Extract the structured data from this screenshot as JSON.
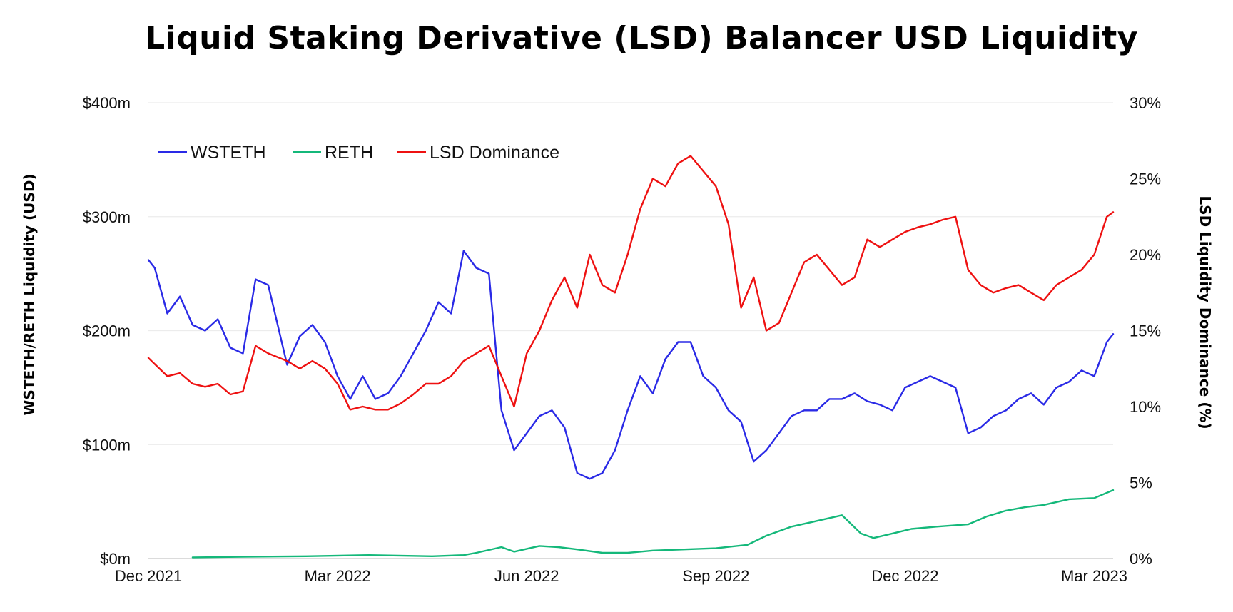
{
  "chart_data": {
    "type": "line",
    "title": "Liquid Staking Derivative (LSD) Balancer USD Liquidity",
    "ylabel": "WSTETH/RETH Liquidity (USD)",
    "y2label": "LSD Liquidity Dominance (%)",
    "xlabel": "",
    "x_ticks": [
      "Dec 2021",
      "Mar 2022",
      "Jun 2022",
      "Sep 2022",
      "Dec 2022",
      "Mar 2023"
    ],
    "x_range": [
      0,
      15.3
    ],
    "y_ticks": [
      "$0m",
      "$100m",
      "$200m",
      "$300m",
      "$400m"
    ],
    "ylim": [
      0,
      400
    ],
    "y2_ticks": [
      "0%",
      "5%",
      "10%",
      "15%",
      "20%",
      "25%",
      "30%"
    ],
    "y2lim": [
      0,
      30
    ],
    "grid": true,
    "legend_position": "top-left",
    "series": [
      {
        "name": "WSTETH",
        "color": "#2a2ae6",
        "axis": "left",
        "unit": "USD millions",
        "x": [
          0,
          0.1,
          0.3,
          0.5,
          0.7,
          0.9,
          1.1,
          1.3,
          1.5,
          1.7,
          1.9,
          2.2,
          2.4,
          2.6,
          2.8,
          3.0,
          3.2,
          3.4,
          3.6,
          3.8,
          4.0,
          4.2,
          4.4,
          4.6,
          4.8,
          5.0,
          5.2,
          5.4,
          5.6,
          5.8,
          6.0,
          6.2,
          6.4,
          6.6,
          6.8,
          7.0,
          7.2,
          7.4,
          7.6,
          7.8,
          8.0,
          8.2,
          8.4,
          8.6,
          8.8,
          9.0,
          9.2,
          9.4,
          9.6,
          9.8,
          10.0,
          10.2,
          10.4,
          10.6,
          10.8,
          11.0,
          11.2,
          11.4,
          11.6,
          11.8,
          12.0,
          12.2,
          12.4,
          12.6,
          12.8,
          13.0,
          13.2,
          13.4,
          13.6,
          13.8,
          14.0,
          14.2,
          14.4,
          14.6,
          14.8,
          15.0,
          15.2,
          15.3
        ],
        "values": [
          262,
          255,
          215,
          230,
          205,
          200,
          210,
          185,
          180,
          245,
          240,
          170,
          195,
          205,
          190,
          160,
          140,
          160,
          140,
          145,
          160,
          180,
          200,
          225,
          215,
          270,
          255,
          250,
          130,
          95,
          110,
          125,
          130,
          115,
          75,
          70,
          75,
          95,
          130,
          160,
          145,
          175,
          190,
          190,
          160,
          150,
          130,
          120,
          85,
          95,
          110,
          125,
          130,
          130,
          140,
          140,
          145,
          138,
          135,
          130,
          150,
          155,
          160,
          155,
          150,
          110,
          115,
          125,
          130,
          140,
          145,
          135,
          150,
          155,
          165,
          160,
          190,
          197
        ]
      },
      {
        "name": "RETH",
        "color": "#14b87a",
        "axis": "left",
        "unit": "USD millions",
        "x": [
          0.7,
          1.5,
          2.5,
          3.5,
          4.5,
          5.0,
          5.2,
          5.6,
          5.8,
          6.2,
          6.5,
          6.8,
          7.2,
          7.6,
          8.0,
          8.5,
          9.0,
          9.5,
          9.8,
          10.2,
          10.6,
          11.0,
          11.3,
          11.5,
          11.8,
          12.1,
          12.5,
          13.0,
          13.3,
          13.6,
          13.9,
          14.2,
          14.6,
          15.0,
          15.3
        ],
        "values": [
          1,
          1.5,
          2,
          3,
          2,
          3,
          5,
          10,
          6,
          11,
          10,
          8,
          5,
          5,
          7,
          8,
          9,
          12,
          20,
          28,
          33,
          38,
          22,
          18,
          22,
          26,
          28,
          30,
          37,
          42,
          45,
          47,
          52,
          53,
          60
        ]
      },
      {
        "name": "LSD Dominance",
        "color": "#ee1111",
        "axis": "right",
        "unit": "percent",
        "x": [
          0,
          0.1,
          0.3,
          0.5,
          0.7,
          0.9,
          1.1,
          1.3,
          1.5,
          1.7,
          1.9,
          2.2,
          2.4,
          2.6,
          2.8,
          3.0,
          3.2,
          3.4,
          3.6,
          3.8,
          4.0,
          4.2,
          4.4,
          4.6,
          4.8,
          5.0,
          5.2,
          5.4,
          5.6,
          5.8,
          6.0,
          6.2,
          6.4,
          6.6,
          6.8,
          7.0,
          7.2,
          7.4,
          7.6,
          7.8,
          8.0,
          8.2,
          8.4,
          8.6,
          8.8,
          9.0,
          9.2,
          9.4,
          9.6,
          9.8,
          10.0,
          10.2,
          10.4,
          10.6,
          10.8,
          11.0,
          11.2,
          11.4,
          11.6,
          11.8,
          12.0,
          12.2,
          12.4,
          12.6,
          12.8,
          13.0,
          13.2,
          13.4,
          13.6,
          13.8,
          14.0,
          14.2,
          14.4,
          14.6,
          14.8,
          15.0,
          15.2,
          15.3
        ],
        "values": [
          13.2,
          12.8,
          12.0,
          12.2,
          11.5,
          11.3,
          11.5,
          10.8,
          11.0,
          14.0,
          13.5,
          13.0,
          12.5,
          13.0,
          12.5,
          11.5,
          9.8,
          10.0,
          9.8,
          9.8,
          10.2,
          10.8,
          11.5,
          11.5,
          12.0,
          13.0,
          13.5,
          14.0,
          12.0,
          10.0,
          13.5,
          15.0,
          17.0,
          18.5,
          16.5,
          20.0,
          18.0,
          17.5,
          20.0,
          23.0,
          25.0,
          24.5,
          26.0,
          26.5,
          25.5,
          24.5,
          22.0,
          16.5,
          18.5,
          15.0,
          15.5,
          17.5,
          19.5,
          20.0,
          19.0,
          18.0,
          18.5,
          21.0,
          20.5,
          21.0,
          21.5,
          21.8,
          22.0,
          22.3,
          22.5,
          19.0,
          18.0,
          17.5,
          17.8,
          18.0,
          17.5,
          17.0,
          18.0,
          18.5,
          19.0,
          20.0,
          22.5,
          22.8
        ]
      }
    ]
  }
}
